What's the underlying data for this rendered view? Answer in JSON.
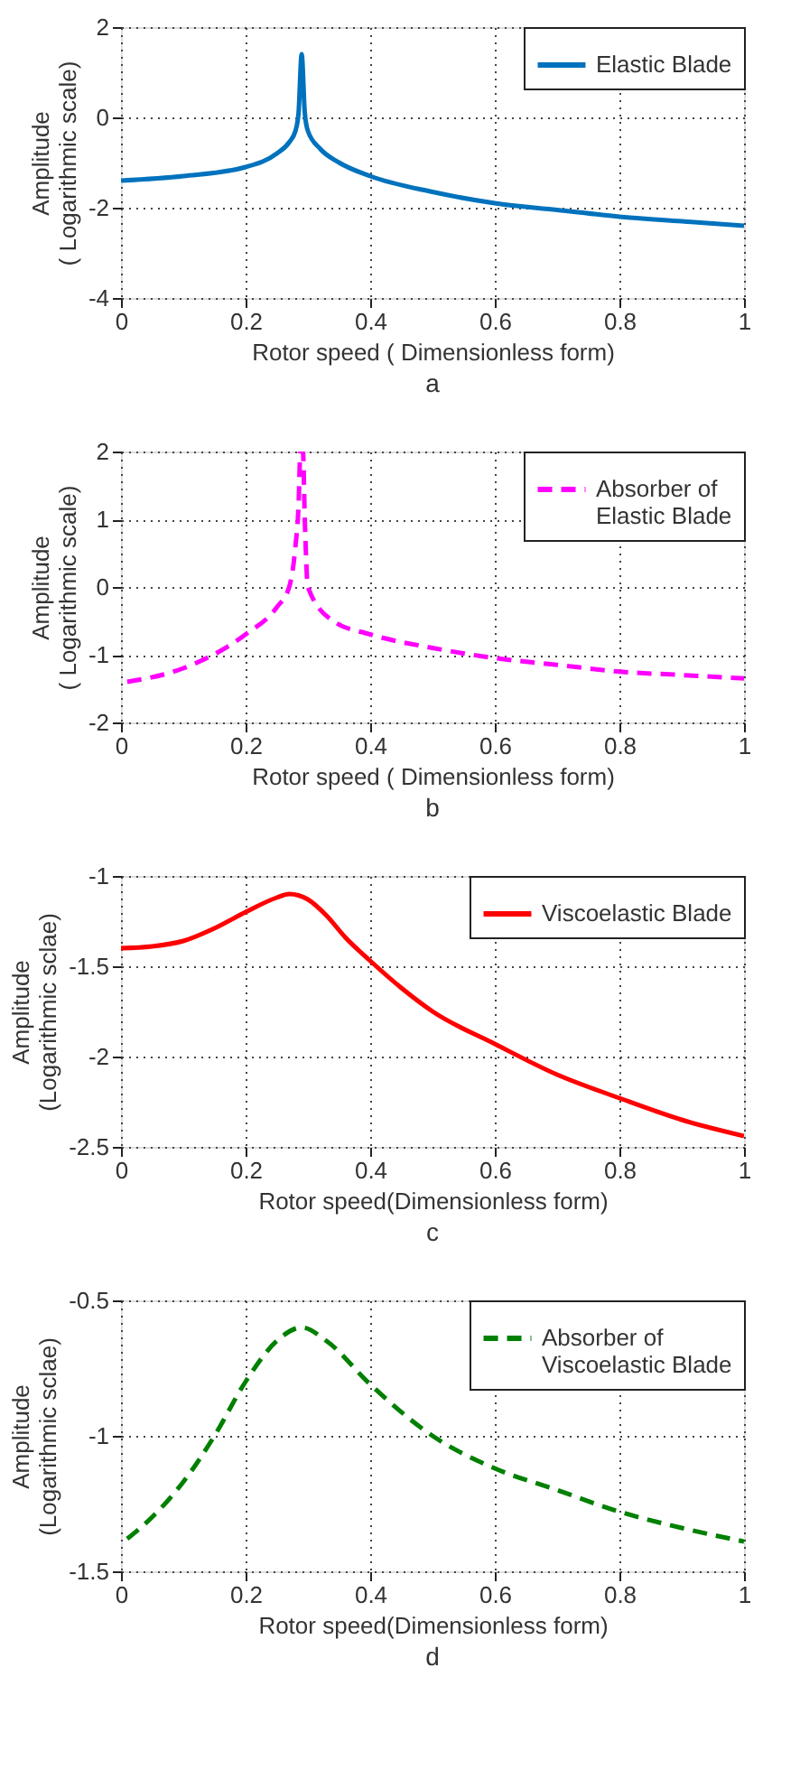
{
  "chart_data": [
    {
      "type": "line",
      "xlabel": "Rotor speed ( Dimensionless form)",
      "ylabel": "Amplitude ( Logarithmic scale)",
      "annotations": [
        "a"
      ],
      "xlim": [
        0,
        1
      ],
      "xticks": [
        0,
        0.2,
        0.4,
        0.6,
        0.8,
        1
      ],
      "ylim": [
        -4,
        2
      ],
      "yticks": [
        -4,
        -2,
        0,
        2
      ],
      "grid": true,
      "legend": "top right",
      "series": [
        {
          "name": "Elastic Blade",
          "color": "#0072bd",
          "line_style": "solid",
          "x": [
            0,
            0.1,
            0.2,
            0.25,
            0.27,
            0.28,
            0.285,
            0.29,
            0.295,
            0.3,
            0.32,
            0.35,
            0.4,
            0.5,
            0.6,
            0.7,
            0.8,
            0.9,
            1
          ],
          "values": [
            -1.4,
            -1.3,
            -1.1,
            -0.8,
            -0.55,
            -0.3,
            0.1,
            1.4,
            0.1,
            -0.3,
            -0.7,
            -1.0,
            -1.3,
            -1.65,
            -1.9,
            -2.05,
            -2.2,
            -2.3,
            -2.4
          ]
        }
      ]
    },
    {
      "type": "line",
      "xlabel": "Rotor speed ( Dimensionless form)",
      "ylabel": "Amplitude ( Logarithmic scale)",
      "annotations": [
        "b"
      ],
      "xlim": [
        0,
        1
      ],
      "xticks": [
        0,
        0.2,
        0.4,
        0.6,
        0.8,
        1
      ],
      "ylim": [
        -2,
        2
      ],
      "yticks": [
        -2,
        -1,
        0,
        1,
        2
      ],
      "grid": true,
      "legend": "top right",
      "series": [
        {
          "name": "Absorber of Elastic Blade",
          "color": "#ff00ff",
          "line_style": "dashed",
          "x": [
            0.01,
            0.1,
            0.2,
            0.25,
            0.27,
            0.28,
            0.285,
            0.288,
            0.292,
            0.295,
            0.3,
            0.34,
            0.4,
            0.5,
            0.6,
            0.7,
            0.8,
            0.9,
            1
          ],
          "values": [
            -1.4,
            -1.2,
            -0.7,
            -0.3,
            0,
            0.6,
            1.2,
            2,
            2,
            1,
            0,
            -0.5,
            -0.7,
            -0.9,
            -1.05,
            -1.15,
            -1.25,
            -1.3,
            -1.35
          ]
        }
      ]
    },
    {
      "type": "line",
      "xlabel": "Rotor speed(Dimensionless form)",
      "ylabel": "Amplitude (Logarithmic sclae)",
      "annotations": [
        "c"
      ],
      "xlim": [
        0,
        1
      ],
      "xticks": [
        0,
        0.2,
        0.4,
        0.6,
        0.8,
        1
      ],
      "ylim": [
        -2.5,
        -1
      ],
      "yticks": [
        -2.5,
        -2,
        -1.5,
        -1
      ],
      "grid": true,
      "legend": "top right",
      "series": [
        {
          "name": "Viscoelastic Blade",
          "color": "#ff0000",
          "line_style": "solid",
          "x": [
            0,
            0.05,
            0.1,
            0.15,
            0.2,
            0.25,
            0.27,
            0.3,
            0.33,
            0.36,
            0.4,
            0.45,
            0.5,
            0.6,
            0.7,
            0.8,
            0.9,
            1
          ],
          "values": [
            -1.4,
            -1.39,
            -1.36,
            -1.29,
            -1.2,
            -1.12,
            -1.1,
            -1.13,
            -1.22,
            -1.34,
            -1.47,
            -1.62,
            -1.75,
            -1.93,
            -2.1,
            -2.23,
            -2.35,
            -2.44
          ]
        }
      ]
    },
    {
      "type": "line",
      "xlabel": "Rotor speed(Dimensionless form)",
      "ylabel": "Amplitude (Logarithmic sclae)",
      "annotations": [
        "d"
      ],
      "xlim": [
        0,
        1
      ],
      "xticks": [
        0,
        0.2,
        0.4,
        0.6,
        0.8,
        1
      ],
      "ylim": [
        -1.5,
        -0.5
      ],
      "yticks": [
        -1.5,
        -1,
        -0.5
      ],
      "grid": true,
      "legend": "top right",
      "series": [
        {
          "name": "Absorber of Viscoelastic Blade",
          "color": "#008000",
          "line_style": "dashed",
          "x": [
            0.01,
            0.05,
            0.1,
            0.15,
            0.2,
            0.25,
            0.29,
            0.33,
            0.4,
            0.5,
            0.6,
            0.7,
            0.8,
            0.9,
            1
          ],
          "values": [
            -1.38,
            -1.3,
            -1.17,
            -1.0,
            -0.8,
            -0.65,
            -0.6,
            -0.65,
            -0.81,
            -1.0,
            -1.12,
            -1.2,
            -1.28,
            -1.34,
            -1.39
          ]
        }
      ]
    }
  ]
}
